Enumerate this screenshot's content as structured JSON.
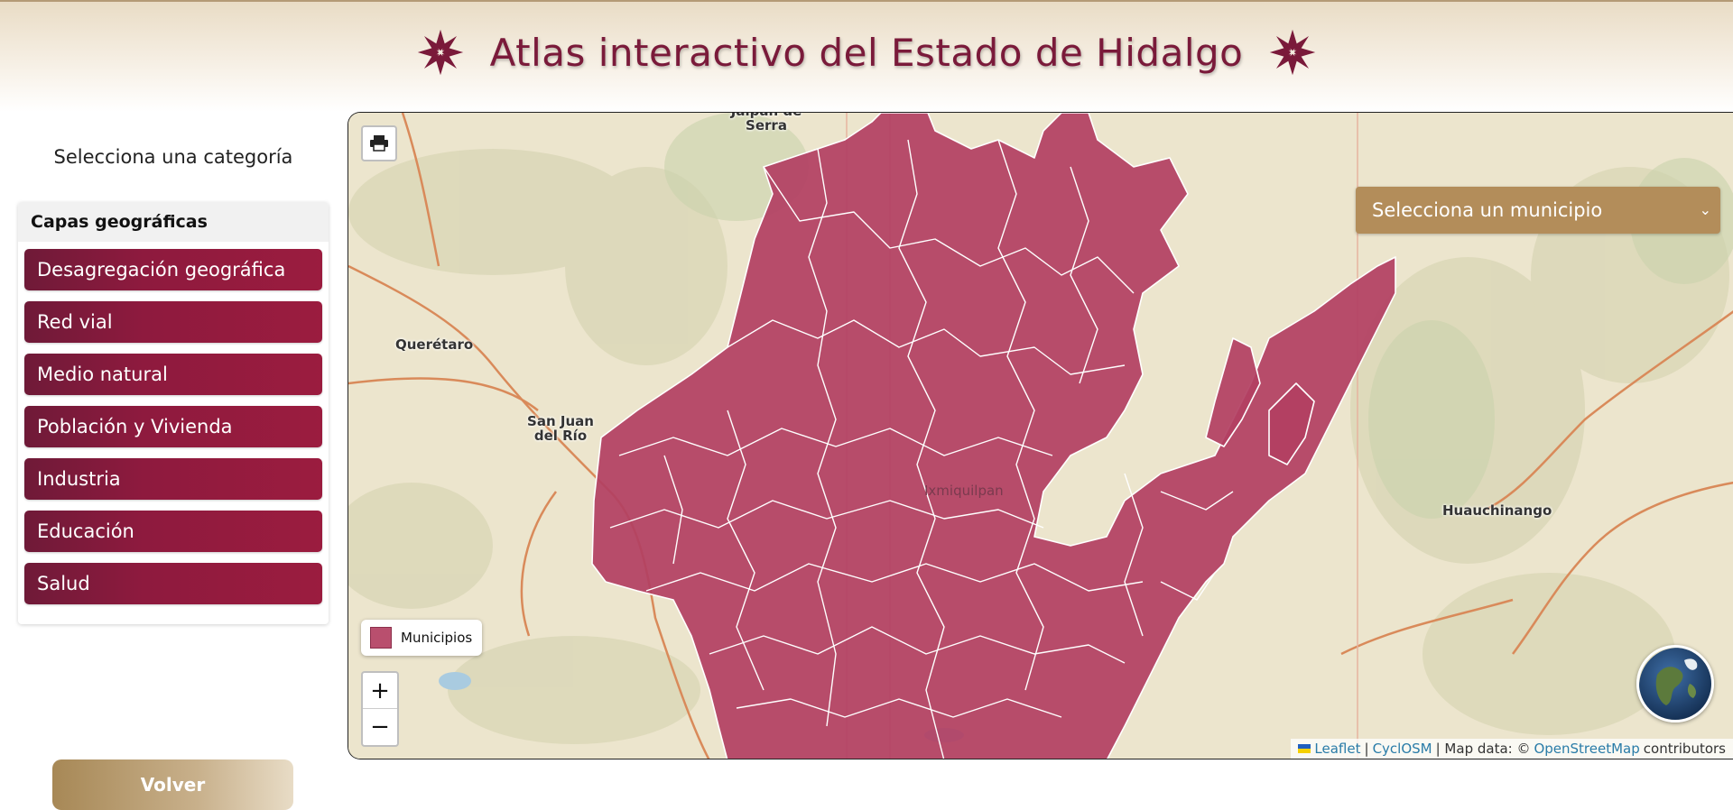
{
  "header": {
    "title": "Atlas interactivo del Estado de Hidalgo",
    "ornament_color": "#7a1a3a"
  },
  "sidebar": {
    "heading": "Selecciona una categoría",
    "panel_title": "Capas geográficas",
    "categories": [
      "Desagregación geográfica",
      "Red vial",
      "Medio natural",
      "Población y Vivienda",
      "Industria",
      "Educación",
      "Salud"
    ],
    "back_label": "Volver"
  },
  "map": {
    "municipality_select": "Selecciona un municipio",
    "legend_label": "Municipios",
    "legend_color": "#b94f6e",
    "zoom_in": "+",
    "zoom_out": "−",
    "place_labels": [
      "Querétaro",
      "San Juan del Río",
      "Huauchinango",
      "Jalpan de Serra",
      "Ixmiquilpan"
    ],
    "attribution": {
      "leaflet": "Leaflet",
      "sep1": "|",
      "cyclosm": "CyclOSM",
      "sep2": "| Map data: ©",
      "osm": "OpenStreetMap",
      "contributors": "contributors"
    }
  },
  "colors": {
    "brand": "#8e1a3e",
    "gold": "#b38d5a",
    "map_base": "#eae4cc",
    "municipality_fill": "#b23f62"
  },
  "icons": [
    "ornament-star-icon",
    "print-icon",
    "chevron-down-icon",
    "globe-icon"
  ]
}
